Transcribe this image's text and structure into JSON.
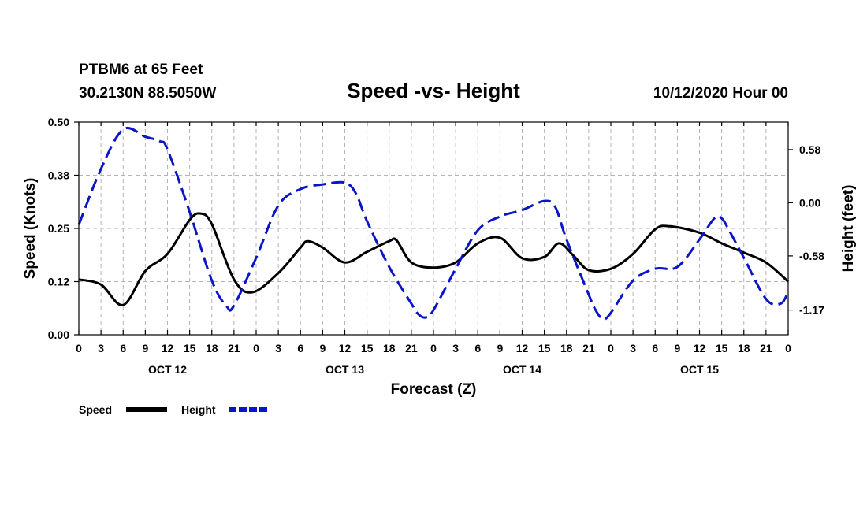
{
  "header": {
    "station": "PTBM6 at 65 Feet",
    "coords": "30.2130N 88.5050W",
    "title": "Speed -vs- Height",
    "timestamp": "10/12/2020 Hour 00"
  },
  "chart_data": {
    "type": "line",
    "title": "Speed -vs- Height",
    "xlabel": "Forecast (Z)",
    "ylabel": "Speed (Knots)",
    "y2label": "Height (feet)",
    "xlim": [
      0,
      96
    ],
    "ylim": [
      0,
      0.5
    ],
    "y2lim": [
      -1.44,
      0.88
    ],
    "grid": true,
    "x_tick_labels": [
      "0",
      "3",
      "6",
      "9",
      "12",
      "15",
      "18",
      "21",
      "0",
      "3",
      "6",
      "9",
      "12",
      "15",
      "18",
      "21",
      "0",
      "3",
      "6",
      "9",
      "12",
      "15",
      "18",
      "21",
      "0",
      "3",
      "6",
      "9",
      "12",
      "15",
      "18",
      "21",
      "0"
    ],
    "y_ticks": [
      {
        "value": 0.0,
        "label": "0.00"
      },
      {
        "value": 0.125,
        "label": "0.12"
      },
      {
        "value": 0.25,
        "label": "0.25"
      },
      {
        "value": 0.375,
        "label": "0.38"
      },
      {
        "value": 0.5,
        "label": "0.50"
      }
    ],
    "y2_ticks": [
      {
        "value": 0.58,
        "label": "0.58"
      },
      {
        "value": 0.0,
        "label": "0.00"
      },
      {
        "value": -0.58,
        "label": "-0.58"
      },
      {
        "value": -1.17,
        "label": "-1.17"
      }
    ],
    "date_labels": [
      {
        "x": 12,
        "label": "OCT 12"
      },
      {
        "x": 36,
        "label": "OCT 13"
      },
      {
        "x": 60,
        "label": "OCT 14"
      },
      {
        "x": 84,
        "label": "OCT 15"
      }
    ],
    "series": [
      {
        "name": "Speed",
        "axis": "left",
        "color": "#000000",
        "dash": "solid",
        "points": [
          [
            0,
            0.13
          ],
          [
            3,
            0.118
          ],
          [
            6,
            0.07
          ],
          [
            9,
            0.15
          ],
          [
            12,
            0.19
          ],
          [
            15,
            0.27
          ],
          [
            16.5,
            0.285
          ],
          [
            18,
            0.26
          ],
          [
            21,
            0.13
          ],
          [
            23.5,
            0.1
          ],
          [
            27,
            0.145
          ],
          [
            30,
            0.205
          ],
          [
            31,
            0.22
          ],
          [
            33,
            0.205
          ],
          [
            36,
            0.17
          ],
          [
            39,
            0.195
          ],
          [
            42,
            0.22
          ],
          [
            43,
            0.222
          ],
          [
            45,
            0.17
          ],
          [
            48,
            0.158
          ],
          [
            51,
            0.17
          ],
          [
            54,
            0.215
          ],
          [
            57,
            0.228
          ],
          [
            60,
            0.18
          ],
          [
            63,
            0.183
          ],
          [
            65,
            0.215
          ],
          [
            67,
            0.185
          ],
          [
            69,
            0.152
          ],
          [
            72,
            0.155
          ],
          [
            75,
            0.19
          ],
          [
            78,
            0.248
          ],
          [
            80,
            0.255
          ],
          [
            84,
            0.24
          ],
          [
            87,
            0.215
          ],
          [
            90,
            0.193
          ],
          [
            93,
            0.17
          ],
          [
            96,
            0.125
          ]
        ]
      },
      {
        "name": "Height",
        "axis": "right",
        "color": "#0a14c8",
        "dash": "dashed",
        "points": [
          [
            0,
            -0.24
          ],
          [
            3,
            0.37
          ],
          [
            6,
            0.8
          ],
          [
            9,
            0.72
          ],
          [
            11,
            0.67
          ],
          [
            12,
            0.58
          ],
          [
            15,
            -0.1
          ],
          [
            18,
            -0.85
          ],
          [
            20,
            -1.13
          ],
          [
            21,
            -1.12
          ],
          [
            24,
            -0.6
          ],
          [
            27,
            -0.03
          ],
          [
            30,
            0.15
          ],
          [
            33,
            0.2
          ],
          [
            36,
            0.22
          ],
          [
            37.5,
            0.1
          ],
          [
            39,
            -0.2
          ],
          [
            42,
            -0.7
          ],
          [
            45,
            -1.1
          ],
          [
            46,
            -1.22
          ],
          [
            47,
            -1.25
          ],
          [
            48,
            -1.17
          ],
          [
            51,
            -0.72
          ],
          [
            54,
            -0.3
          ],
          [
            57,
            -0.15
          ],
          [
            60,
            -0.08
          ],
          [
            63,
            0.02
          ],
          [
            64.5,
            -0.05
          ],
          [
            66,
            -0.4
          ],
          [
            69,
            -1.0
          ],
          [
            70,
            -1.18
          ],
          [
            71,
            -1.27
          ],
          [
            72,
            -1.2
          ],
          [
            75,
            -0.85
          ],
          [
            78,
            -0.72
          ],
          [
            81,
            -0.7
          ],
          [
            84,
            -0.4
          ],
          [
            86,
            -0.17
          ],
          [
            87,
            -0.17
          ],
          [
            88,
            -0.3
          ],
          [
            90,
            -0.6
          ],
          [
            93,
            -1.05
          ],
          [
            95,
            -1.1
          ],
          [
            96,
            -0.97
          ]
        ]
      }
    ]
  },
  "legend": {
    "speed_label": "Speed",
    "height_label": "Height"
  }
}
